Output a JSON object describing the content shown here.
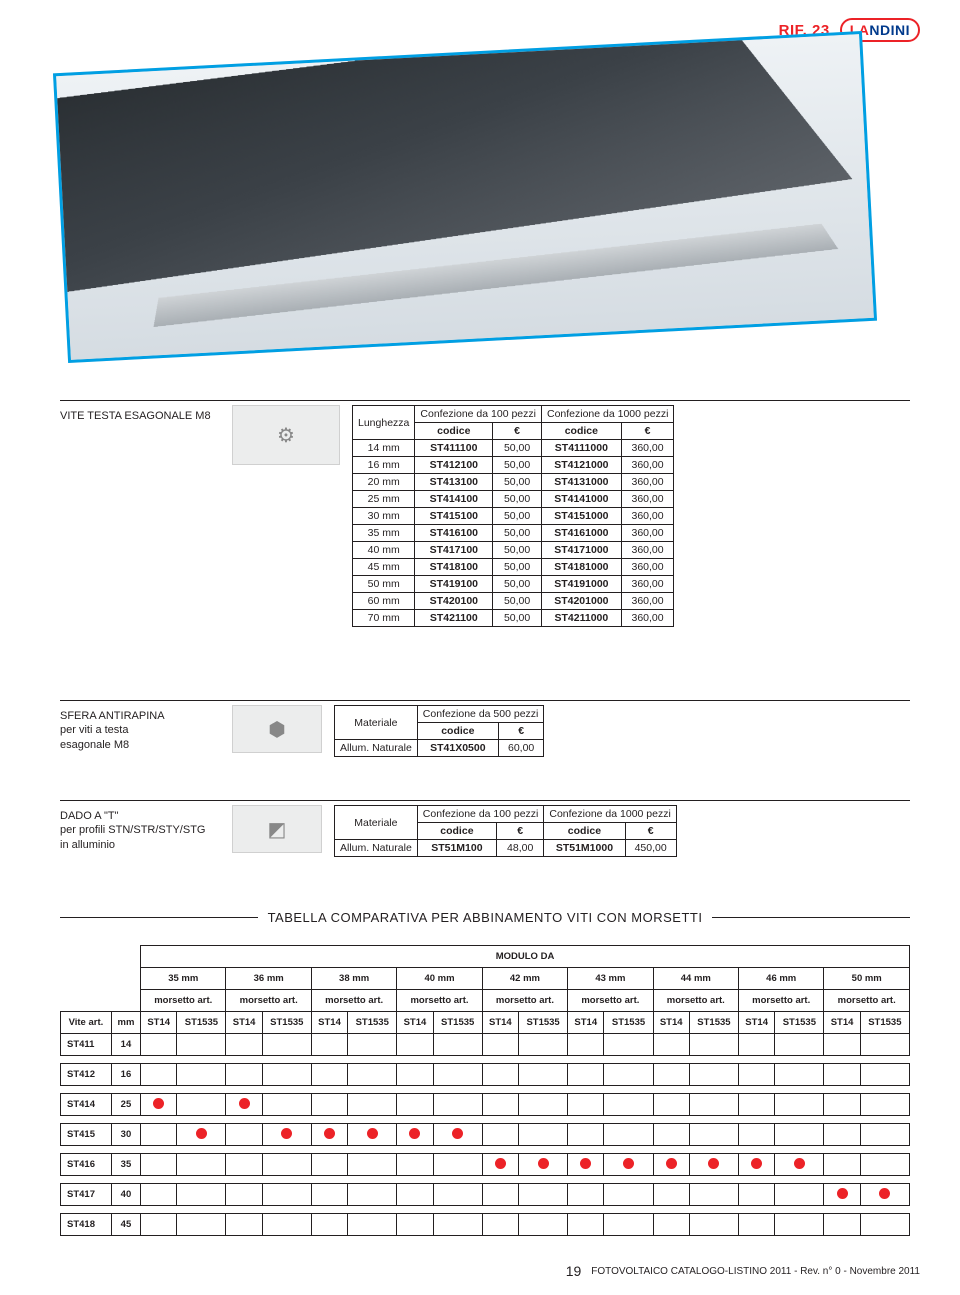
{
  "header": {
    "rif": "RIF. 23",
    "brand_prefix": "LA",
    "brand_suffix": "NDINI"
  },
  "section1": {
    "title": "VITE TESTA ESAGONALE M8",
    "col_len": "Lunghezza",
    "group100": "Confezione da 100 pezzi",
    "group1000": "Confezione da 1000 pezzi",
    "sub_code": "codice",
    "sub_eur": "€",
    "rows": [
      {
        "len": "14 mm",
        "c1": "ST411100",
        "p1": "50,00",
        "c2": "ST4111000",
        "p2": "360,00"
      },
      {
        "len": "16 mm",
        "c1": "ST412100",
        "p1": "50,00",
        "c2": "ST4121000",
        "p2": "360,00"
      },
      {
        "len": "20 mm",
        "c1": "ST413100",
        "p1": "50,00",
        "c2": "ST4131000",
        "p2": "360,00"
      },
      {
        "len": "25 mm",
        "c1": "ST414100",
        "p1": "50,00",
        "c2": "ST4141000",
        "p2": "360,00"
      },
      {
        "len": "30 mm",
        "c1": "ST415100",
        "p1": "50,00",
        "c2": "ST4151000",
        "p2": "360,00"
      },
      {
        "len": "35 mm",
        "c1": "ST416100",
        "p1": "50,00",
        "c2": "ST4161000",
        "p2": "360,00"
      },
      {
        "len": "40 mm",
        "c1": "ST417100",
        "p1": "50,00",
        "c2": "ST4171000",
        "p2": "360,00"
      },
      {
        "len": "45 mm",
        "c1": "ST418100",
        "p1": "50,00",
        "c2": "ST4181000",
        "p2": "360,00"
      },
      {
        "len": "50 mm",
        "c1": "ST419100",
        "p1": "50,00",
        "c2": "ST4191000",
        "p2": "360,00"
      },
      {
        "len": "60 mm",
        "c1": "ST420100",
        "p1": "50,00",
        "c2": "ST4201000",
        "p2": "360,00"
      },
      {
        "len": "70 mm",
        "c1": "ST421100",
        "p1": "50,00",
        "c2": "ST4211000",
        "p2": "360,00"
      }
    ]
  },
  "section2": {
    "title": "SFERA ANTIRAPINA",
    "line2": "per viti a testa",
    "line3": "esagonale M8",
    "col_mat": "Materiale",
    "group500": "Confezione da 500 pezzi",
    "sub_code": "codice",
    "sub_eur": "€",
    "mat": "Allum. Naturale",
    "code": "ST41X0500",
    "price": "60,00"
  },
  "section3": {
    "title": "DADO A \"T\"",
    "line2": "per profili STN/STR/STY/STG",
    "line3": "in alluminio",
    "col_mat": "Materiale",
    "group100": "Confezione da 100 pezzi",
    "group1000": "Confezione da 1000 pezzi",
    "sub_code": "codice",
    "sub_eur": "€",
    "mat": "Allum. Naturale",
    "c1": "ST51M100",
    "p1": "48,00",
    "c2": "ST51M1000",
    "p2": "450,00"
  },
  "compare": {
    "title": "TABELLA COMPARATIVA PER ABBINAMENTO VITI CON MORSETTI",
    "modulo": "MODULO DA",
    "sizes": [
      "35 mm",
      "36 mm",
      "38 mm",
      "40 mm",
      "42 mm",
      "43 mm",
      "44 mm",
      "46 mm",
      "50 mm"
    ],
    "morsetto": "morsetto art.",
    "sub_a": "ST14",
    "sub_b": "ST1535",
    "vite_label": "Vite art.",
    "mm_label": "mm",
    "rows": [
      {
        "art": "ST411",
        "mm": "14",
        "dots": []
      },
      {
        "art": "ST412",
        "mm": "16",
        "dots": []
      },
      {
        "art": "ST414",
        "mm": "25",
        "dots": [
          0,
          2
        ]
      },
      {
        "art": "ST415",
        "mm": "30",
        "dots": [
          1,
          3,
          4,
          5,
          6,
          7
        ]
      },
      {
        "art": "ST416",
        "mm": "35",
        "dots": [
          8,
          9,
          10,
          11,
          12,
          13,
          14,
          15
        ]
      },
      {
        "art": "ST417",
        "mm": "40",
        "dots": [
          16,
          17
        ]
      },
      {
        "art": "ST418",
        "mm": "45",
        "dots": []
      }
    ]
  },
  "footer": {
    "page": "19",
    "text": "FOTOVOLTAICO CATALOGO-LISTINO 2011 - Rev. n° 0 - Novembre 2011"
  },
  "colors": {
    "accent_blue": "#009fe3",
    "accent_red": "#ec2227",
    "text": "#231f20"
  }
}
